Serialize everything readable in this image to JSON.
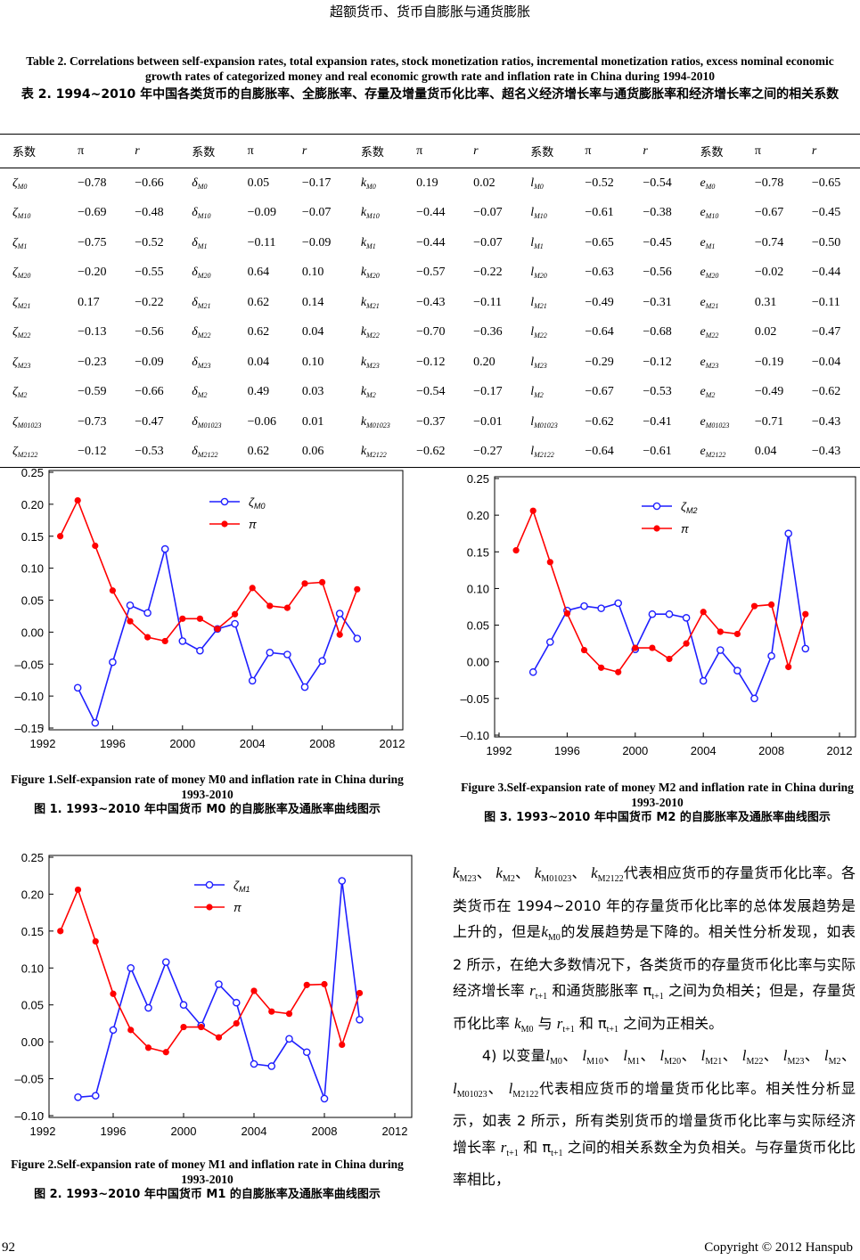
{
  "header": {
    "running_title": "超额货币、货币自膨胀与通货膨胀"
  },
  "table": {
    "caption_en": "Table 2. Correlations between self-expansion rates, total expansion rates, stock monetization ratios, incremental monetization ratios, excess nominal economic growth rates of categorized money and real economic growth rate and inflation rate in China during 1994-2010",
    "caption_zh": "表 2. 1994~2010 年中国各类货币的自膨胀率、全膨胀率、存量及增量货币化比率、超名义经济增长率与通货膨胀率和经济增长率之间的相关系数",
    "headers": [
      "系数",
      "π",
      "r",
      "系数",
      "π",
      "r",
      "系数",
      "π",
      "r",
      "系数",
      "π",
      "r",
      "系数",
      "π",
      "r"
    ],
    "groups": [
      {
        "sym": "ζ"
      },
      {
        "sym": "δ"
      },
      {
        "sym": "k"
      },
      {
        "sym": "l"
      },
      {
        "sym": "e"
      }
    ],
    "rows": [
      {
        "sub": "M0",
        "vals": [
          "−0.78",
          "−0.66",
          "0.05",
          "−0.17",
          "0.19",
          "0.02",
          "−0.52",
          "−0.54",
          "−0.78",
          "−0.65"
        ]
      },
      {
        "sub": "M10",
        "vals": [
          "−0.69",
          "−0.48",
          "−0.09",
          "−0.07",
          "−0.44",
          "−0.07",
          "−0.61",
          "−0.38",
          "−0.67",
          "−0.45"
        ]
      },
      {
        "sub": "M1",
        "vals": [
          "−0.75",
          "−0.52",
          "−0.11",
          "−0.09",
          "−0.44",
          "−0.07",
          "−0.65",
          "−0.45",
          "−0.74",
          "−0.50"
        ]
      },
      {
        "sub": "M20",
        "vals": [
          "−0.20",
          "−0.55",
          "0.64",
          "0.10",
          "−0.57",
          "−0.22",
          "−0.63",
          "−0.56",
          "−0.02",
          "−0.44"
        ]
      },
      {
        "sub": "M21",
        "vals": [
          "0.17",
          "−0.22",
          "0.62",
          "0.14",
          "−0.43",
          "−0.11",
          "−0.49",
          "−0.31",
          "0.31",
          "−0.11"
        ]
      },
      {
        "sub": "M22",
        "vals": [
          "−0.13",
          "−0.56",
          "0.62",
          "0.04",
          "−0.70",
          "−0.36",
          "−0.64",
          "−0.68",
          "0.02",
          "−0.47"
        ]
      },
      {
        "sub": "M23",
        "vals": [
          "−0.23",
          "−0.09",
          "0.04",
          "0.10",
          "−0.12",
          "0.20",
          "−0.29",
          "−0.12",
          "−0.19",
          "−0.04"
        ]
      },
      {
        "sub": "M2",
        "vals": [
          "−0.59",
          "−0.66",
          "0.49",
          "0.03",
          "−0.54",
          "−0.17",
          "−0.67",
          "−0.53",
          "−0.49",
          "−0.62"
        ]
      },
      {
        "sub": "M01023",
        "vals": [
          "−0.73",
          "−0.47",
          "−0.06",
          "0.01",
          "−0.37",
          "−0.01",
          "−0.62",
          "−0.41",
          "−0.71",
          "−0.43"
        ]
      },
      {
        "sub": "M2122",
        "vals": [
          "−0.12",
          "−0.53",
          "0.62",
          "0.06",
          "−0.62",
          "−0.27",
          "−0.64",
          "−0.61",
          "0.04",
          "−0.43"
        ]
      }
    ]
  },
  "chart_data": [
    {
      "id": "fig1",
      "type": "line",
      "title": "",
      "xlabel": "",
      "ylabel": "",
      "xlim": [
        1992,
        2012
      ],
      "ylim": [
        -0.15,
        0.25
      ],
      "xticks": [
        "1992",
        "1996",
        "2000",
        "2004",
        "2008",
        "2012"
      ],
      "yticks": [
        "0.25",
        "0.20",
        "0.15",
        "0.10",
        "0.05",
        "0.00",
        "–0.05",
        "–0.10",
        "–0.15"
      ],
      "grid": false,
      "legend": "top-right",
      "series": [
        {
          "name": "ζM0",
          "legend_sym": "ζ",
          "legend_sub": "M0",
          "color": "#1f1fff",
          "x": [
            1994,
            1995,
            1996,
            1997,
            1998,
            1999,
            2000,
            2001,
            2002,
            2003,
            2004,
            2005,
            2006,
            2007,
            2008,
            2009,
            2010
          ],
          "values": [
            -0.087,
            -0.142,
            -0.047,
            0.042,
            0.03,
            0.13,
            -0.014,
            -0.029,
            0.005,
            0.013,
            -0.076,
            -0.032,
            -0.035,
            -0.086,
            -0.045,
            0.029,
            -0.01
          ]
        },
        {
          "name": "π",
          "legend_sym": "π",
          "legend_sub": "",
          "color": "#ff0000",
          "x": [
            1993,
            1994,
            1995,
            1996,
            1997,
            1998,
            1999,
            2000,
            2001,
            2002,
            2003,
            2004,
            2005,
            2006,
            2007,
            2008,
            2009,
            2010
          ],
          "values": [
            0.15,
            0.206,
            0.135,
            0.065,
            0.017,
            -0.008,
            -0.014,
            0.021,
            0.021,
            0.005,
            0.028,
            0.069,
            0.041,
            0.038,
            0.076,
            0.078,
            -0.004,
            0.067
          ]
        }
      ],
      "caption_en": "Figure 1.Self-expansion rate of money M0 and inflation rate in China during 1993-2010",
      "caption_zh": "图 1. 1993~2010 年中国货币 M0 的自膨胀率及通胀率曲线图示"
    },
    {
      "id": "fig3",
      "type": "line",
      "title": "",
      "xlabel": "",
      "ylabel": "",
      "xlim": [
        1992,
        2012
      ],
      "ylim": [
        -0.1,
        0.25
      ],
      "xticks": [
        "1992",
        "1996",
        "2000",
        "2004",
        "2008",
        "2012"
      ],
      "yticks": [
        "0.25",
        "0.20",
        "0.15",
        "0.10",
        "0.05",
        "0.00",
        "–0.05",
        "–0.10"
      ],
      "grid": false,
      "legend": "top-right",
      "series": [
        {
          "name": "ζM2",
          "legend_sym": "ζ",
          "legend_sub": "M2",
          "color": "#1f1fff",
          "x": [
            1994,
            1995,
            1996,
            1997,
            1998,
            1999,
            2000,
            2001,
            2002,
            2003,
            2004,
            2005,
            2006,
            2007,
            2008,
            2009,
            2010
          ],
          "values": [
            -0.014,
            0.027,
            0.07,
            0.076,
            0.073,
            0.08,
            0.017,
            0.065,
            0.065,
            0.06,
            -0.026,
            0.016,
            -0.012,
            -0.05,
            0.008,
            0.175,
            0.018
          ]
        },
        {
          "name": "π",
          "legend_sym": "π",
          "legend_sub": "",
          "color": "#ff0000",
          "x": [
            1993,
            1994,
            1995,
            1996,
            1997,
            1998,
            1999,
            2000,
            2001,
            2002,
            2003,
            2004,
            2005,
            2006,
            2007,
            2008,
            2009,
            2010
          ],
          "values": [
            0.152,
            0.206,
            0.136,
            0.066,
            0.016,
            -0.008,
            -0.014,
            0.019,
            0.019,
            0.004,
            0.025,
            0.068,
            0.041,
            0.038,
            0.076,
            0.078,
            -0.007,
            0.065
          ]
        }
      ],
      "caption_en": "Figure 3.Self-expansion rate of money M2 and inflation rate in China during 1993-2010",
      "caption_zh": "图 3. 1993~2010 年中国货币 M2 的自膨胀率及通胀率曲线图示"
    },
    {
      "id": "fig2",
      "type": "line",
      "title": "",
      "xlabel": "",
      "ylabel": "",
      "xlim": [
        1992,
        2012
      ],
      "ylim": [
        -0.1,
        0.25
      ],
      "xticks": [
        "1992",
        "1996",
        "2000",
        "2004",
        "2008",
        "2012"
      ],
      "yticks": [
        "0.25",
        "0.20",
        "0.15",
        "0.10",
        "0.05",
        "0.00",
        "–0.05",
        "–0.10"
      ],
      "grid": false,
      "legend": "top-right",
      "series": [
        {
          "name": "ζM1",
          "legend_sym": "ζ",
          "legend_sub": "M1",
          "color": "#1f1fff",
          "x": [
            1994,
            1995,
            1996,
            1997,
            1998,
            1999,
            2000,
            2001,
            2002,
            2003,
            2004,
            2005,
            2006,
            2007,
            2008,
            2009,
            2010
          ],
          "values": [
            -0.075,
            -0.073,
            0.016,
            0.1,
            0.046,
            0.108,
            0.05,
            0.022,
            0.078,
            0.053,
            -0.03,
            -0.033,
            0.004,
            -0.014,
            -0.077,
            0.218,
            0.03
          ]
        },
        {
          "name": "π",
          "legend_sym": "π",
          "legend_sub": "",
          "color": "#ff0000",
          "x": [
            1993,
            1994,
            1995,
            1996,
            1997,
            1998,
            1999,
            2000,
            2001,
            2002,
            2003,
            2004,
            2005,
            2006,
            2007,
            2008,
            2009,
            2010
          ],
          "values": [
            0.15,
            0.206,
            0.136,
            0.065,
            0.016,
            -0.008,
            -0.014,
            0.02,
            0.02,
            0.006,
            0.025,
            0.069,
            0.041,
            0.038,
            0.077,
            0.078,
            -0.004,
            0.066
          ]
        }
      ],
      "caption_en": "Figure 2.Self-expansion rate of money M1 and inflation rate in China during 1993-2010",
      "caption_zh": "图 2. 1993~2010 年中国货币 M1 的自膨胀率及通胀率曲线图示"
    }
  ],
  "body": {
    "paragraphs": [
      [
        {
          "v": "k",
          "s": "M23"
        },
        {
          "t": "、 "
        },
        {
          "v": "k",
          "s": "M2"
        },
        {
          "t": "、 "
        },
        {
          "v": "k",
          "s": "M01023"
        },
        {
          "t": "、 "
        },
        {
          "v": "k",
          "s": "M2122"
        },
        {
          "t": "代表相应货币的存量货币化比率。各类货币在 1994~2010 年的存量货币化比率的总体发展趋势是上升的，但是"
        },
        {
          "v": "k",
          "s": "M0"
        },
        {
          "t": "的发展趋势是下降的。相关性分析发现，如表 2 所示，在绝大多数情况下，各类货币的存量货币化比率与实际经济增长率 "
        },
        {
          "v": "r",
          "s": "t+1"
        },
        {
          "t": " 和通货膨胀率 π"
        },
        {
          "v": "",
          "s": "t+1"
        },
        {
          "t": " 之间为负相关；但是，存量货币化比率 "
        },
        {
          "v": "k",
          "s": "M0"
        },
        {
          "t": " 与 "
        },
        {
          "v": "r",
          "s": "t+1"
        },
        {
          "t": " 和 π"
        },
        {
          "v": "",
          "s": "t+1"
        },
        {
          "t": " 之间为正相关。"
        }
      ],
      [
        {
          "t": "　　4) 以变量"
        },
        {
          "v": "l",
          "s": "M0"
        },
        {
          "t": "、 "
        },
        {
          "v": "l",
          "s": "M10"
        },
        {
          "t": "、 "
        },
        {
          "v": "l",
          "s": "M1"
        },
        {
          "t": "、 "
        },
        {
          "v": "l",
          "s": "M20"
        },
        {
          "t": "、 "
        },
        {
          "v": "l",
          "s": "M21"
        },
        {
          "t": "、 "
        },
        {
          "v": "l",
          "s": "M22"
        },
        {
          "t": "、 "
        },
        {
          "v": "l",
          "s": "M23"
        },
        {
          "t": "、 "
        },
        {
          "v": "l",
          "s": "M2"
        },
        {
          "t": "、 "
        },
        {
          "v": "l",
          "s": "M01023"
        },
        {
          "t": "、 "
        },
        {
          "v": "l",
          "s": "M2122"
        },
        {
          "t": "代表相应货币的增量货币化比率。相关性分析显示，如表 2 所示，所有类别货币的增量货币化比率与实际经济增长率 "
        },
        {
          "v": "r",
          "s": "t+1"
        },
        {
          "t": " 和 π"
        },
        {
          "v": "",
          "s": "t+1"
        },
        {
          "t": " 之间的相关系数全为负相关。与存量货币化比率相比，"
        }
      ]
    ]
  },
  "footer": {
    "page_number": "92",
    "copyright": "Copyright © 2012 Hanspub"
  }
}
